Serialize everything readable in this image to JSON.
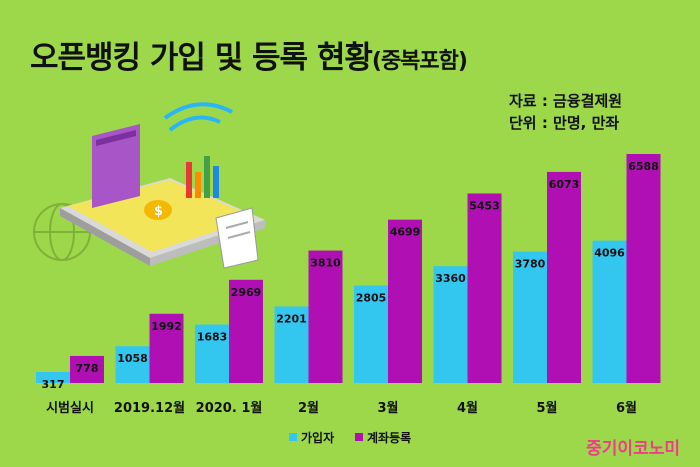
{
  "header": {
    "title": "오픈뱅킹 가입 및 등록 현황",
    "title_suffix": "(중복포함)",
    "source": "자료 : 금융결제원",
    "unit": "단위 : 만명, 만좌"
  },
  "brand": "중기이코노미",
  "chart_data": {
    "type": "bar",
    "title": "오픈뱅킹 가입 및 등록 현황(중복포함)",
    "categories": [
      "시범실시",
      "2019.12월",
      "2020. 1월",
      "2월",
      "3월",
      "4월",
      "5월",
      "6월"
    ],
    "series": [
      {
        "name": "가입자",
        "color": "#33c6ef",
        "values": [
          317,
          1058,
          1683,
          2201,
          2805,
          3360,
          3780,
          4096
        ]
      },
      {
        "name": "계좌등록",
        "color": "#b00fb4",
        "values": [
          778,
          1992,
          2969,
          3810,
          4699,
          5453,
          6073,
          6588
        ]
      }
    ],
    "ylim": [
      0,
      6588
    ],
    "legend": "bottom-center",
    "grid": false
  },
  "colors": {
    "background": "#9dd84b",
    "series1": "#33c6ef",
    "series2": "#b00fb4",
    "brand": "#f03c8a"
  }
}
